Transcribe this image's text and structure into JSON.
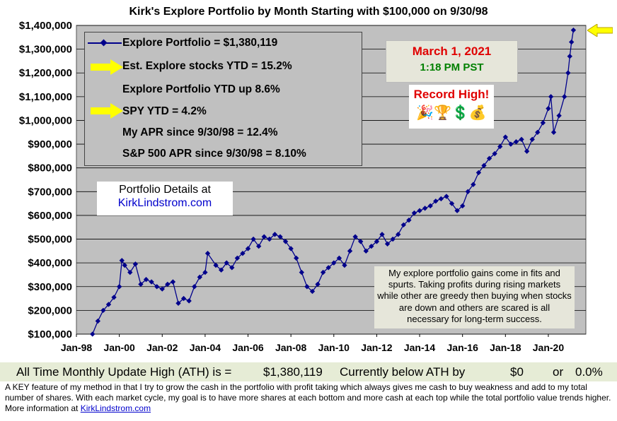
{
  "chart_data": {
    "type": "line",
    "title": "Kirk's Explore Portfolio by Month Starting with $100,000 on 9/30/98",
    "xlabel": "",
    "ylabel": "",
    "x_tick_labels": [
      "Jan-98",
      "Jan-00",
      "Jan-02",
      "Jan-04",
      "Jan-06",
      "Jan-08",
      "Jan-10",
      "Jan-12",
      "Jan-14",
      "Jan-16",
      "Jan-18",
      "Jan-20"
    ],
    "y_tick_labels": [
      "$100,000",
      "$200,000",
      "$300,000",
      "$400,000",
      "$500,000",
      "$600,000",
      "$700,000",
      "$800,000",
      "$900,000",
      "$1,000,000",
      "$1,100,000",
      "$1,200,000",
      "$1,300,000",
      "$1,400,000"
    ],
    "ylim": [
      100000,
      1400000
    ],
    "xlim": [
      1998.0,
      2021.75
    ],
    "grid": "horizontal",
    "legend_placement": "top-left",
    "line_color": "#00008b",
    "background_color": "#c0c0c0",
    "series": [
      {
        "name": "Explore Portfolio",
        "points": [
          [
            1998.75,
            100000
          ],
          [
            1999.0,
            155000
          ],
          [
            1999.25,
            200000
          ],
          [
            1999.5,
            225000
          ],
          [
            1999.75,
            255000
          ],
          [
            2000.0,
            300000
          ],
          [
            2000.12,
            410000
          ],
          [
            2000.25,
            390000
          ],
          [
            2000.5,
            360000
          ],
          [
            2000.75,
            395000
          ],
          [
            2001.0,
            310000
          ],
          [
            2001.25,
            330000
          ],
          [
            2001.5,
            320000
          ],
          [
            2001.75,
            300000
          ],
          [
            2002.0,
            290000
          ],
          [
            2002.25,
            310000
          ],
          [
            2002.5,
            320000
          ],
          [
            2002.75,
            230000
          ],
          [
            2003.0,
            250000
          ],
          [
            2003.25,
            240000
          ],
          [
            2003.5,
            300000
          ],
          [
            2003.75,
            340000
          ],
          [
            2004.0,
            360000
          ],
          [
            2004.12,
            440000
          ],
          [
            2004.5,
            390000
          ],
          [
            2004.75,
            370000
          ],
          [
            2005.0,
            400000
          ],
          [
            2005.25,
            380000
          ],
          [
            2005.5,
            420000
          ],
          [
            2005.75,
            440000
          ],
          [
            2006.0,
            460000
          ],
          [
            2006.25,
            500000
          ],
          [
            2006.5,
            470000
          ],
          [
            2006.75,
            510000
          ],
          [
            2007.0,
            500000
          ],
          [
            2007.25,
            520000
          ],
          [
            2007.5,
            510000
          ],
          [
            2007.75,
            490000
          ],
          [
            2008.0,
            460000
          ],
          [
            2008.25,
            420000
          ],
          [
            2008.5,
            360000
          ],
          [
            2008.75,
            300000
          ],
          [
            2009.0,
            280000
          ],
          [
            2009.25,
            310000
          ],
          [
            2009.5,
            360000
          ],
          [
            2009.75,
            380000
          ],
          [
            2010.0,
            400000
          ],
          [
            2010.25,
            420000
          ],
          [
            2010.5,
            390000
          ],
          [
            2010.75,
            450000
          ],
          [
            2011.0,
            510000
          ],
          [
            2011.25,
            490000
          ],
          [
            2011.5,
            450000
          ],
          [
            2011.75,
            470000
          ],
          [
            2012.0,
            490000
          ],
          [
            2012.25,
            520000
          ],
          [
            2012.5,
            480000
          ],
          [
            2012.75,
            500000
          ],
          [
            2013.0,
            520000
          ],
          [
            2013.25,
            560000
          ],
          [
            2013.5,
            580000
          ],
          [
            2013.75,
            610000
          ],
          [
            2014.0,
            620000
          ],
          [
            2014.25,
            630000
          ],
          [
            2014.5,
            640000
          ],
          [
            2014.75,
            660000
          ],
          [
            2015.0,
            670000
          ],
          [
            2015.25,
            680000
          ],
          [
            2015.5,
            650000
          ],
          [
            2015.75,
            620000
          ],
          [
            2016.0,
            640000
          ],
          [
            2016.25,
            700000
          ],
          [
            2016.5,
            730000
          ],
          [
            2016.75,
            780000
          ],
          [
            2017.0,
            810000
          ],
          [
            2017.25,
            840000
          ],
          [
            2017.5,
            860000
          ],
          [
            2017.75,
            890000
          ],
          [
            2018.0,
            930000
          ],
          [
            2018.25,
            900000
          ],
          [
            2018.5,
            910000
          ],
          [
            2018.75,
            920000
          ],
          [
            2019.0,
            870000
          ],
          [
            2019.25,
            920000
          ],
          [
            2019.5,
            950000
          ],
          [
            2019.75,
            990000
          ],
          [
            2020.0,
            1050000
          ],
          [
            2020.12,
            1100000
          ],
          [
            2020.25,
            950000
          ],
          [
            2020.5,
            1020000
          ],
          [
            2020.75,
            1100000
          ],
          [
            2020.92,
            1200000
          ],
          [
            2021.0,
            1270000
          ],
          [
            2021.08,
            1330000
          ],
          [
            2021.17,
            1380119
          ]
        ]
      }
    ]
  },
  "legend": {
    "series_label": "Explore Portfolio",
    "series_value": "=  $1,380,119",
    "lines": [
      "Est. Explore stocks YTD =  15.2%",
      "Explore Portfolio YTD up 8.6%",
      "SPY YTD =  4.2%",
      "My APR since 9/30/98 =  12.4%",
      "S&P 500 APR since 9/30/98 =  8.10%"
    ]
  },
  "date_box": {
    "date": "March 1, 2021",
    "time": "1:18 PM PST"
  },
  "record": {
    "text": "Record High!",
    "icons": "🎉🏆💲💰"
  },
  "details": {
    "line1": "Portfolio Details at",
    "line2": "KirkLindstrom.com"
  },
  "note": "My explore portfolio gains come in fits and spurts. Taking profits during rising markets while other are greedy then buying when stocks are down and others are scared is all necessary for long-term success.",
  "ath": {
    "label": "All Time Monthly Update High (ATH) is =",
    "value": "$1,380,119",
    "below_label": "Currently below ATH by",
    "below_amount": "$0",
    "or_text": "or",
    "below_pct": "0.0%"
  },
  "footnote": {
    "text": "A KEY feature of my method in that I try to grow the cash in the portfolio with profit taking which always gives me cash to buy weakness and add to my total number of shares.  With each market cycle, my goal is to have more shares at each bottom and more cash at each top while the total portfolio value trends higher.        More information at",
    "link": "KirkLindstrom.com"
  },
  "colors": {
    "arrow": "#ffff00",
    "line": "#00008b",
    "plot_bg": "#c0c0c0"
  }
}
